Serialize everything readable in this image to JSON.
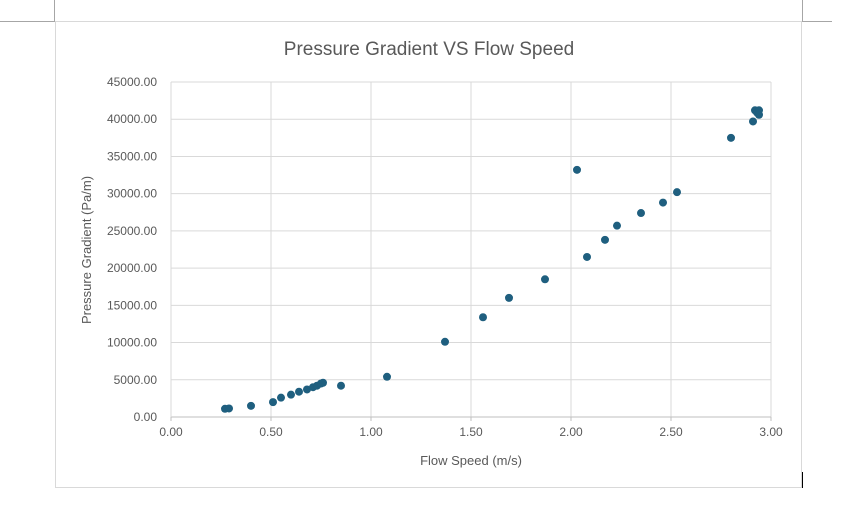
{
  "chart_data": {
    "type": "scatter",
    "title": "Pressure Gradient VS Flow Speed",
    "xlabel": "Flow Speed (m/s)",
    "ylabel": "Pressure Gradient (Pa/m)",
    "xlim": [
      0,
      3
    ],
    "ylim": [
      0,
      45000
    ],
    "x_ticks": [
      0,
      0.5,
      1,
      1.5,
      2,
      2.5,
      3
    ],
    "y_ticks": [
      0,
      5000,
      10000,
      15000,
      20000,
      25000,
      30000,
      35000,
      40000,
      45000
    ],
    "x_tick_labels": [
      "0.00",
      "0.50",
      "1.00",
      "1.50",
      "2.00",
      "2.50",
      "3.00"
    ],
    "y_tick_labels": [
      "0.00",
      "5000.00",
      "10000.00",
      "15000.00",
      "20000.00",
      "25000.00",
      "30000.00",
      "35000.00",
      "40000.00",
      "45000.00"
    ],
    "grid": true,
    "marker_color": "#1f5f7f",
    "points": [
      {
        "x": 0.27,
        "y": 1100
      },
      {
        "x": 0.29,
        "y": 1150
      },
      {
        "x": 0.4,
        "y": 1500
      },
      {
        "x": 0.51,
        "y": 2000
      },
      {
        "x": 0.55,
        "y": 2600
      },
      {
        "x": 0.6,
        "y": 3000
      },
      {
        "x": 0.64,
        "y": 3400
      },
      {
        "x": 0.68,
        "y": 3700
      },
      {
        "x": 0.71,
        "y": 4000
      },
      {
        "x": 0.73,
        "y": 4200
      },
      {
        "x": 0.75,
        "y": 4500
      },
      {
        "x": 0.76,
        "y": 4600
      },
      {
        "x": 0.85,
        "y": 4200
      },
      {
        "x": 1.08,
        "y": 5400
      },
      {
        "x": 1.37,
        "y": 10100
      },
      {
        "x": 1.56,
        "y": 13400
      },
      {
        "x": 1.69,
        "y": 16000
      },
      {
        "x": 1.87,
        "y": 18500
      },
      {
        "x": 2.03,
        "y": 33200
      },
      {
        "x": 2.08,
        "y": 21500
      },
      {
        "x": 2.17,
        "y": 23800
      },
      {
        "x": 2.23,
        "y": 25700
      },
      {
        "x": 2.35,
        "y": 27400
      },
      {
        "x": 2.46,
        "y": 28800
      },
      {
        "x": 2.53,
        "y": 30200
      },
      {
        "x": 2.8,
        "y": 37500
      },
      {
        "x": 2.91,
        "y": 39700
      },
      {
        "x": 2.92,
        "y": 41200
      },
      {
        "x": 2.93,
        "y": 40900
      },
      {
        "x": 2.94,
        "y": 41200
      },
      {
        "x": 2.94,
        "y": 40600
      }
    ]
  }
}
